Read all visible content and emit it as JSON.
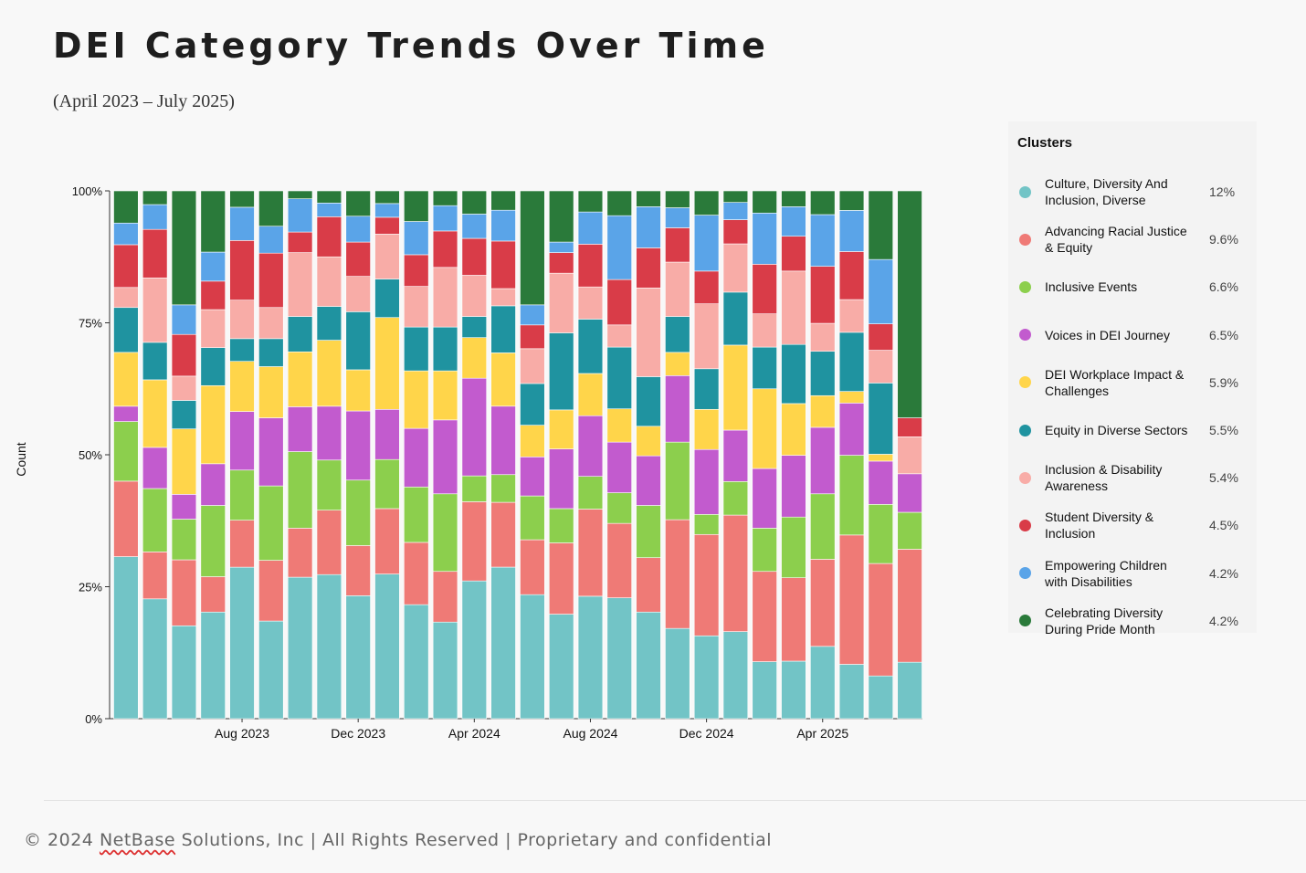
{
  "header": {
    "title": "DEI Category Trends Over Time",
    "subtitle": "(April 2023 – July 2025)"
  },
  "legend": {
    "title": "Clusters"
  },
  "footer": {
    "prefix": "© 2024 ",
    "brand": "NetBase",
    "suffix": " Solutions, Inc | All Rights Reserved | Proprietary and confidential"
  },
  "chart_data": {
    "type": "bar",
    "stacked": true,
    "normalized": true,
    "ylabel": "Count",
    "xlabel": "",
    "ylim": [
      0,
      100
    ],
    "y_ticks": [
      "0%",
      "25%",
      "50%",
      "75%",
      "100%"
    ],
    "x_tick_labels": [
      {
        "index": 4,
        "label": "Aug 2023"
      },
      {
        "index": 8,
        "label": "Dec 2023"
      },
      {
        "index": 12,
        "label": "Apr 2024"
      },
      {
        "index": 16,
        "label": "Aug 2024"
      },
      {
        "index": 20,
        "label": "Dec 2024"
      },
      {
        "index": 24,
        "label": "Apr 2025"
      }
    ],
    "categories": [
      "Apr 2023",
      "May 2023",
      "Jun 2023",
      "Jul 2023",
      "Aug 2023",
      "Sep 2023",
      "Oct 2023",
      "Nov 2023",
      "Dec 2023",
      "Jan 2024",
      "Feb 2024",
      "Mar 2024",
      "Apr 2024",
      "May 2024",
      "Jun 2024",
      "Jul 2024",
      "Aug 2024",
      "Sep 2024",
      "Oct 2024",
      "Nov 2024",
      "Dec 2024",
      "Jan 2025",
      "Feb 2025",
      "Mar 2025",
      "Apr 2025",
      "May 2025",
      "Jun 2025",
      "Jul 2025"
    ],
    "legend_position": "right",
    "series": [
      {
        "name": "Culture, Diversity And Inclusion, Diverse",
        "share": "12%",
        "color": "#72c4c6",
        "values": [
          30.7,
          22.7,
          17.6,
          20.2,
          28.7,
          18.5,
          26.8,
          27.3,
          23.3,
          27.4,
          21.6,
          18.3,
          26.1,
          29.0,
          23.5,
          19.8,
          23.2,
          22.9,
          20.2,
          17.1,
          15.7,
          16.6,
          10.8,
          10.9,
          13.7,
          10.3,
          8.1,
          10.7
        ]
      },
      {
        "name": "Advancing Racial Justice & Equity",
        "share": "9.6%",
        "color": "#ef7a76",
        "values": [
          14.3,
          8.9,
          12.5,
          6.7,
          8.9,
          11.5,
          9.3,
          12.2,
          9.5,
          12.4,
          11.8,
          9.6,
          15.0,
          12.4,
          10.4,
          13.5,
          16.5,
          14.1,
          10.3,
          20.6,
          19.2,
          22.2,
          17.1,
          15.8,
          16.5,
          24.5,
          21.3,
          21.4
        ]
      },
      {
        "name": "Inclusive Events",
        "share": "6.6%",
        "color": "#8ccf4d",
        "values": [
          11.3,
          12.0,
          7.7,
          13.5,
          9.5,
          14.1,
          14.5,
          9.5,
          12.4,
          9.3,
          10.5,
          14.7,
          4.9,
          5.3,
          8.3,
          6.5,
          6.2,
          5.8,
          9.9,
          14.7,
          3.8,
          6.4,
          8.2,
          11.5,
          12.4,
          15.1,
          11.2,
          7.0
        ]
      },
      {
        "name": "Voices in DEI Journey",
        "share": "6.5%",
        "color": "#c25bce",
        "values": [
          2.9,
          7.8,
          4.7,
          7.9,
          11.1,
          12.9,
          8.5,
          10.2,
          13.1,
          9.5,
          11.1,
          14.0,
          18.5,
          13.1,
          7.4,
          11.3,
          11.5,
          9.6,
          9.4,
          12.6,
          12.3,
          9.8,
          11.3,
          11.7,
          12.6,
          9.9,
          8.2,
          7.3
        ]
      },
      {
        "name": "DEI Workplace Impact & Challenges",
        "share": "5.9%",
        "color": "#ffd54a",
        "values": [
          10.2,
          12.8,
          12.4,
          14.8,
          9.5,
          9.7,
          10.4,
          12.5,
          7.8,
          17.4,
          10.9,
          9.3,
          7.7,
          10.2,
          6.0,
          7.4,
          8.0,
          6.3,
          5.6,
          4.4,
          7.6,
          16.2,
          15.1,
          9.8,
          6.0,
          2.2,
          1.3,
          0
        ]
      },
      {
        "name": "Equity in Diverse Sectors",
        "share": "5.5%",
        "color": "#1f93a0",
        "values": [
          8.5,
          7.1,
          5.4,
          7.2,
          4.3,
          5.3,
          6.7,
          6.4,
          11.0,
          7.3,
          8.3,
          8.3,
          4.0,
          9.0,
          7.9,
          14.6,
          10.3,
          11.7,
          9.4,
          6.8,
          7.7,
          10.1,
          7.9,
          11.2,
          8.4,
          11.2,
          13.5,
          0
        ]
      },
      {
        "name": "Inclusion & Disability Awareness",
        "share": "5.4%",
        "color": "#f8aca7",
        "values": [
          3.8,
          12.2,
          4.6,
          7.2,
          7.3,
          5.9,
          12.1,
          9.4,
          6.7,
          8.5,
          7.7,
          11.3,
          7.8,
          3.3,
          6.6,
          11.3,
          6.1,
          4.2,
          16.8,
          10.3,
          12.3,
          9.2,
          6.3,
          13.9,
          5.3,
          6.2,
          6.2,
          7.0
        ]
      },
      {
        "name": "Student Diversity & Inclusion",
        "share": "4.5%",
        "color": "#d93c48",
        "values": [
          8.1,
          9.2,
          7.9,
          5.4,
          11.3,
          10.3,
          3.9,
          7.6,
          6.5,
          3.2,
          6.0,
          6.9,
          7.0,
          9.1,
          4.5,
          3.9,
          8.1,
          8.6,
          7.6,
          6.5,
          6.2,
          4.6,
          9.4,
          6.6,
          10.8,
          9.1,
          5.0,
          3.6
        ]
      },
      {
        "name": "Empowering Children with Disabilities",
        "share": "4.2%",
        "color": "#5aa4e8",
        "values": [
          4.1,
          4.7,
          5.6,
          5.5,
          6.3,
          5.1,
          6.3,
          2.6,
          4.9,
          2.6,
          6.3,
          4.8,
          4.6,
          5.9,
          3.8,
          2.0,
          6.1,
          12.1,
          7.8,
          3.8,
          10.6,
          3.3,
          9.7,
          5.6,
          9.8,
          7.8,
          12.2,
          0
        ]
      },
      {
        "name": "Celebrating Diversity During Pride Month",
        "share": "4.2%",
        "color": "#2a7a3a",
        "values": [
          6.1,
          2.6,
          21.6,
          11.6,
          3.1,
          6.7,
          1.5,
          2.3,
          4.8,
          2.4,
          5.8,
          2.8,
          4.4,
          3.7,
          21.6,
          9.7,
          4.0,
          4.7,
          3.0,
          3.2,
          4.6,
          2.2,
          4.2,
          3.0,
          4.5,
          3.7,
          13.0,
          43.0
        ]
      }
    ]
  }
}
